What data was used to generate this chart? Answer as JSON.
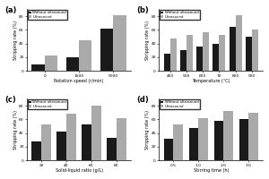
{
  "subplot_a": {
    "label": "(a)",
    "xlabel": "Rotation speed (r/min)",
    "ylabel": "Stripping rate (%)",
    "categories": [
      "0",
      "1500",
      "5000"
    ],
    "without": [
      10,
      20,
      62
    ],
    "ultrasound": [
      22,
      45,
      82
    ],
    "ylim": [
      0,
      90
    ]
  },
  "subplot_b": {
    "label": "(b)",
    "xlabel": "Temperature (°C)",
    "ylabel": "Stripping rate (%)",
    "categories": [
      "400",
      "500",
      "600",
      "70",
      "800",
      "900"
    ],
    "without": [
      25,
      30,
      35,
      40,
      65,
      50
    ],
    "ultrasound": [
      47,
      52,
      57,
      53,
      82,
      60
    ],
    "ylim": [
      0,
      90
    ]
  },
  "subplot_c": {
    "label": "(c)",
    "xlabel": "Solid-liquid ratio (g/L)",
    "ylabel": "Stripping rate (%)",
    "categories": [
      "20",
      "40",
      "60",
      "80"
    ],
    "without": [
      28,
      42,
      52,
      33
    ],
    "ultrasound": [
      52,
      68,
      80,
      62
    ],
    "ylim": [
      0,
      90
    ]
  },
  "subplot_d": {
    "label": "(d)",
    "xlabel": "Stirring time (h)",
    "ylabel": "Stripping rate (%)",
    "categories": [
      "0.5",
      "1.0",
      "2.0",
      "3.0"
    ],
    "without": [
      32,
      48,
      58,
      60
    ],
    "ultrasound": [
      52,
      62,
      72,
      70
    ],
    "ylim": [
      0,
      90
    ]
  },
  "color_without": "#1a1a1a",
  "color_ultrasound": "#aaaaaa",
  "legend_without": "Without ultrasound",
  "legend_ultrasound": "Ultrasound"
}
